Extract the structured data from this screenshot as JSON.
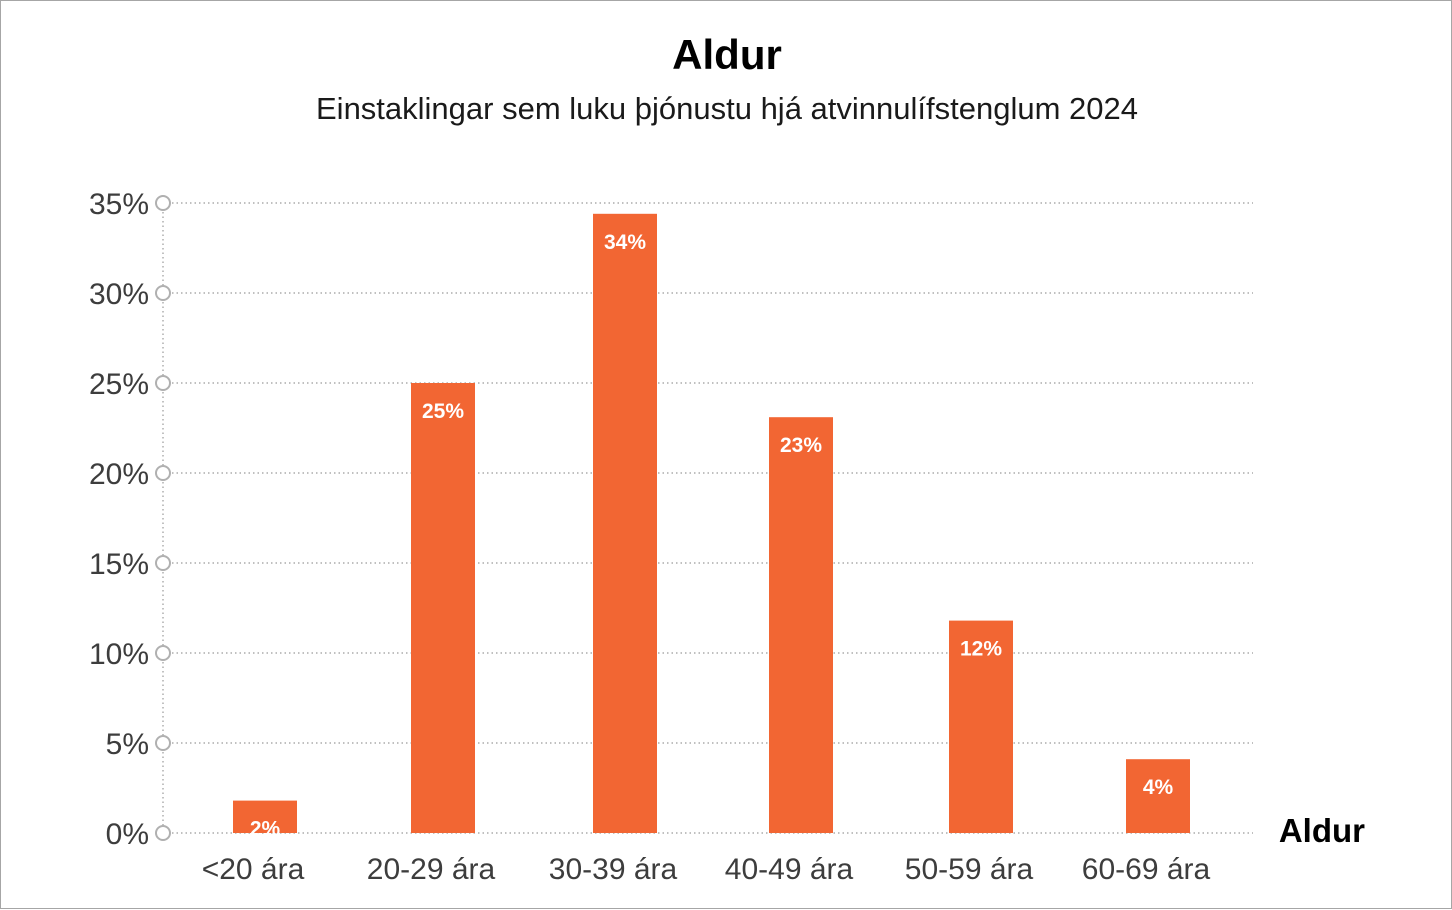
{
  "chart_data": {
    "type": "bar",
    "title": "Aldur",
    "subtitle": "Einstaklingar sem luku þjónustu hjá atvinnulífstenglum 2024",
    "xlabel": "Aldur",
    "ylabel": "",
    "categories": [
      "<20 ára",
      "20-29 ára",
      "30-39 ára",
      "40-49 ára",
      "50-59 ára",
      "60-69 ára"
    ],
    "values": [
      1.8,
      25.0,
      34.4,
      23.1,
      11.8,
      4.1
    ],
    "data_labels": [
      "2%",
      "25%",
      "34%",
      "23%",
      "12%",
      "4%"
    ],
    "ylim": [
      0,
      35
    ],
    "yticks": [
      0,
      5,
      10,
      15,
      20,
      25,
      30,
      35
    ],
    "ytick_labels": [
      "0%",
      "5%",
      "10%",
      "15%",
      "20%",
      "25%",
      "30%",
      "35%"
    ],
    "grid": true,
    "legend": "none",
    "bar_color": "#f26633",
    "grid_color": "#9a9a9a",
    "label_color": "#ffffff"
  }
}
